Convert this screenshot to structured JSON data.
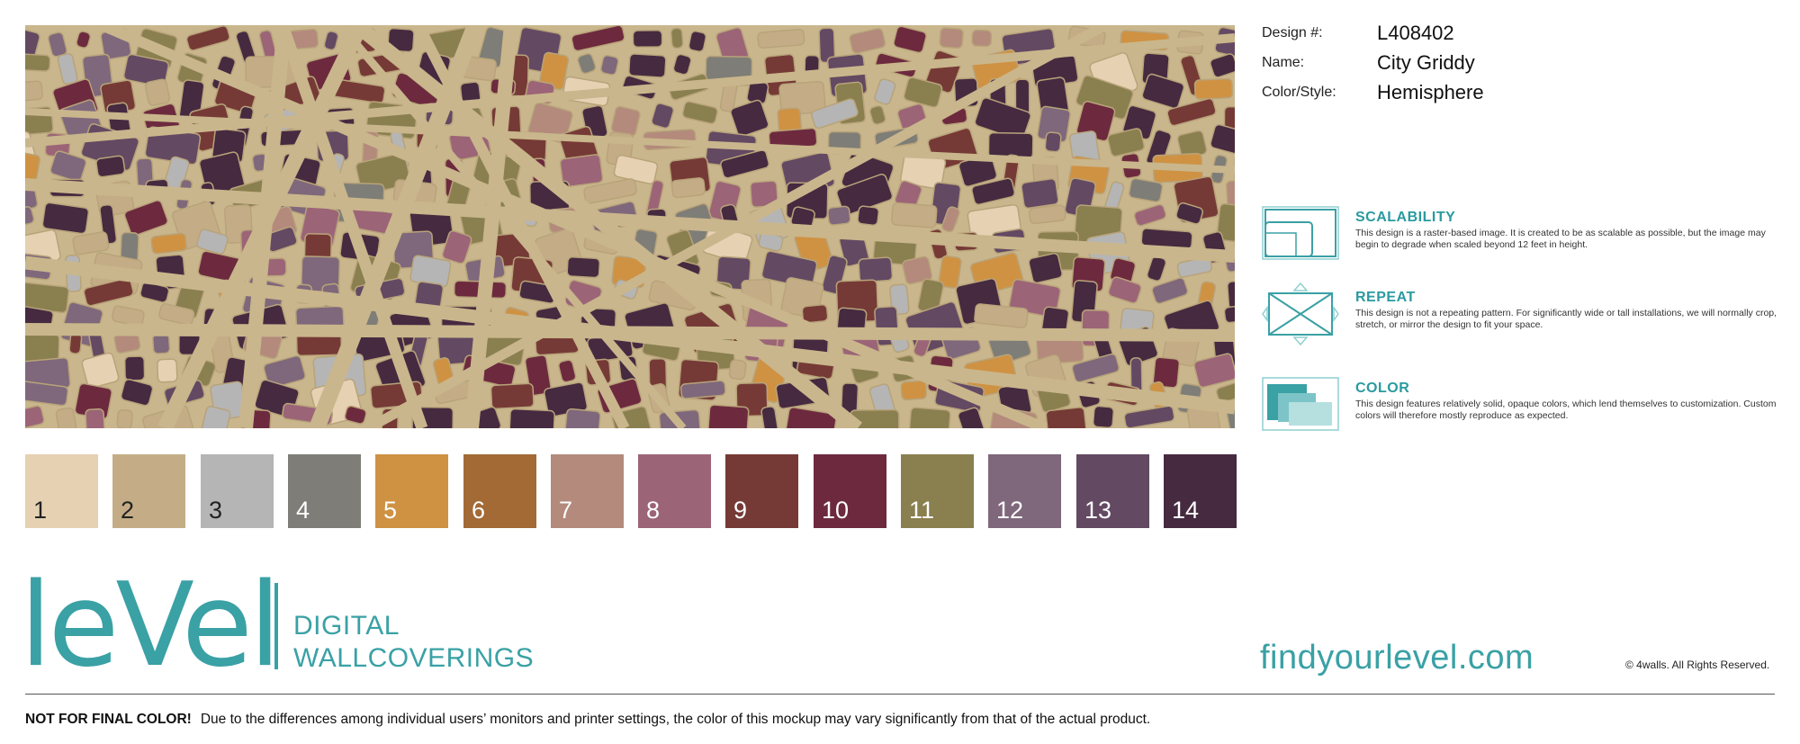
{
  "design": {
    "labels": {
      "number": "Design #:",
      "name": "Name:",
      "style": "Color/Style:"
    },
    "number": "L408402",
    "name": "City Griddy",
    "style": "Hemisphere"
  },
  "features": [
    {
      "title": "SCALABILITY",
      "icon": "scalability-icon",
      "text": "This design is a raster-based image. It is created to be as scalable as possible, but the image may begin to degrade when scaled beyond 12 feet in height."
    },
    {
      "title": "REPEAT",
      "icon": "repeat-icon",
      "text": "This design is not a repeating pattern. For significantly wide or tall installations, we will normally crop, stretch, or mirror the design to fit your space."
    },
    {
      "title": "COLOR",
      "icon": "color-icon",
      "text": "This design features relatively solid, opaque colors, which lend themselves to customization. Custom colors will therefore mostly reproduce as expected."
    }
  ],
  "swatches": [
    {
      "label": "1",
      "color": "#e6d1b3",
      "text_color": "#222222"
    },
    {
      "label": "2",
      "color": "#c4ad86",
      "text_color": "#222222"
    },
    {
      "label": "3",
      "color": "#b5b5b5",
      "text_color": "#222222"
    },
    {
      "label": "4",
      "color": "#7e7d77",
      "text_color": "#ffffff"
    },
    {
      "label": "5",
      "color": "#cf9243",
      "text_color": "#ffffff"
    },
    {
      "label": "6",
      "color": "#a36a36",
      "text_color": "#ffffff"
    },
    {
      "label": "7",
      "color": "#b38a7c",
      "text_color": "#ffffff"
    },
    {
      "label": "8",
      "color": "#9c6477",
      "text_color": "#ffffff"
    },
    {
      "label": "9",
      "color": "#763a36",
      "text_color": "#ffffff"
    },
    {
      "label": "10",
      "color": "#6d2a3e",
      "text_color": "#ffffff"
    },
    {
      "label": "11",
      "color": "#8a7f4f",
      "text_color": "#ffffff"
    },
    {
      "label": "12",
      "color": "#7f687b",
      "text_color": "#ffffff"
    },
    {
      "label": "13",
      "color": "#634962",
      "text_color": "#ffffff"
    },
    {
      "label": "14",
      "color": "#452a40",
      "text_color": "#ffffff"
    }
  ],
  "brand": {
    "logo": "leVel",
    "sub_line1": "DIGITAL",
    "sub_line2": "WALLCOVERINGS",
    "accent": "#3aa1a5"
  },
  "website": "findyourlevel.com",
  "copyright": "© 4walls. All Rights Reserved.",
  "disclaimer": {
    "bold": "NOT FOR FINAL COLOR!",
    "text": "Due to the differences among individual users’ monitors and printer settings, the color of this mockup may vary significantly from that of the actual product."
  },
  "map": {
    "background": "#c9b68c",
    "description_icon": "city-map-pattern"
  }
}
